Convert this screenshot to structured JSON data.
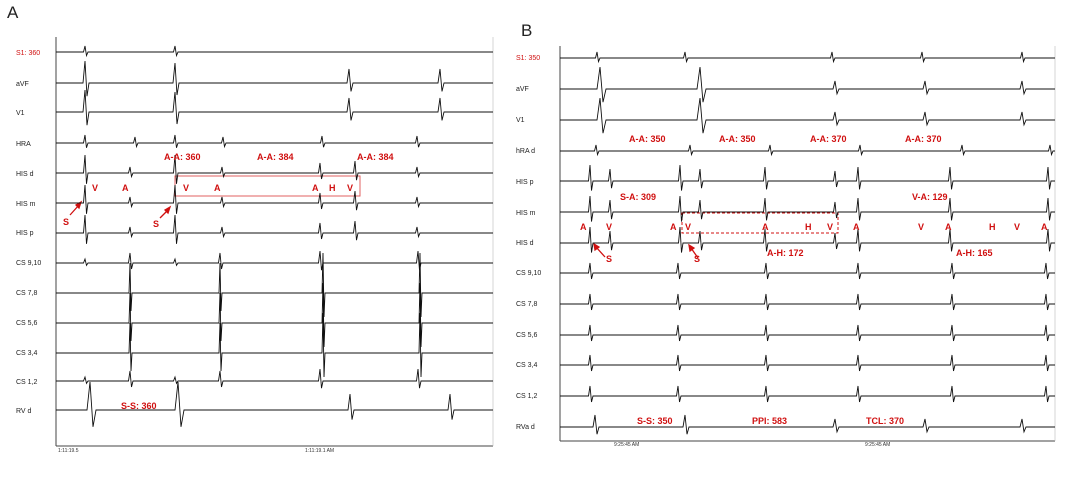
{
  "panels": [
    {
      "id": "A",
      "label": "A",
      "channels": [
        "S1: 360",
        "aVF",
        "V1",
        "HRA",
        "HIS d",
        "HIS m",
        "HIS p",
        "CS 9,10",
        "CS 7,8",
        "CS 5,6",
        "CS 3,4",
        "CS 1,2",
        "RV d"
      ],
      "first_channel_color": "#d01010",
      "annotations": [
        {
          "text": "A-A: 360",
          "color": "#d01010"
        },
        {
          "text": "A-A: 384",
          "color": "#d01010"
        },
        {
          "text": "A-A: 384",
          "color": "#d01010"
        },
        {
          "text": "V",
          "color": "#d01010"
        },
        {
          "text": "A",
          "color": "#d01010"
        },
        {
          "text": "V",
          "color": "#d01010"
        },
        {
          "text": "A",
          "color": "#d01010"
        },
        {
          "text": "A",
          "color": "#d01010"
        },
        {
          "text": "H",
          "color": "#d01010"
        },
        {
          "text": "V",
          "color": "#d01010"
        },
        {
          "text": "S",
          "color": "#d01010"
        },
        {
          "text": "S",
          "color": "#d01010"
        },
        {
          "text": "S-S: 360",
          "color": "#d01010"
        }
      ],
      "timestamps": [
        "1:11:19.5",
        "1:11:19.1 AM"
      ]
    },
    {
      "id": "B",
      "label": "B",
      "channels": [
        "S1: 350",
        "aVF",
        "V1",
        "hRA d",
        "HIS p",
        "HIS m",
        "HIS d",
        "CS 9,10",
        "CS 7,8",
        "CS 5,6",
        "CS 3,4",
        "CS 1,2",
        "RVa d"
      ],
      "first_channel_color": "#d01010",
      "annotations": [
        {
          "text": "A-A: 350",
          "color": "#d01010"
        },
        {
          "text": "A-A: 350",
          "color": "#d01010"
        },
        {
          "text": "A-A: 370",
          "color": "#d01010"
        },
        {
          "text": "A-A: 370",
          "color": "#d01010"
        },
        {
          "text": "S-A: 309",
          "color": "#d01010"
        },
        {
          "text": "V-A: 129",
          "color": "#d01010"
        },
        {
          "text": "A",
          "color": "#d01010"
        },
        {
          "text": "V",
          "color": "#d01010"
        },
        {
          "text": "A",
          "color": "#d01010"
        },
        {
          "text": "V",
          "color": "#d01010"
        },
        {
          "text": "A",
          "color": "#d01010"
        },
        {
          "text": "H",
          "color": "#d01010"
        },
        {
          "text": "V",
          "color": "#d01010"
        },
        {
          "text": "A",
          "color": "#d01010"
        },
        {
          "text": "V",
          "color": "#d01010"
        },
        {
          "text": "A",
          "color": "#d01010"
        },
        {
          "text": "H",
          "color": "#d01010"
        },
        {
          "text": "V",
          "color": "#d01010"
        },
        {
          "text": "A",
          "color": "#d01010"
        },
        {
          "text": "S",
          "color": "#d01010"
        },
        {
          "text": "S",
          "color": "#d01010"
        },
        {
          "text": "A-H: 172",
          "color": "#d01010"
        },
        {
          "text": "A-H: 165",
          "color": "#d01010"
        },
        {
          "text": "S-S: 350",
          "color": "#d01010"
        },
        {
          "text": "PPI: 583",
          "color": "#d01010"
        },
        {
          "text": "TCL: 370",
          "color": "#d01010"
        }
      ],
      "timestamps": [
        "9:25:45 AM",
        "9:25:45 AM"
      ]
    }
  ]
}
